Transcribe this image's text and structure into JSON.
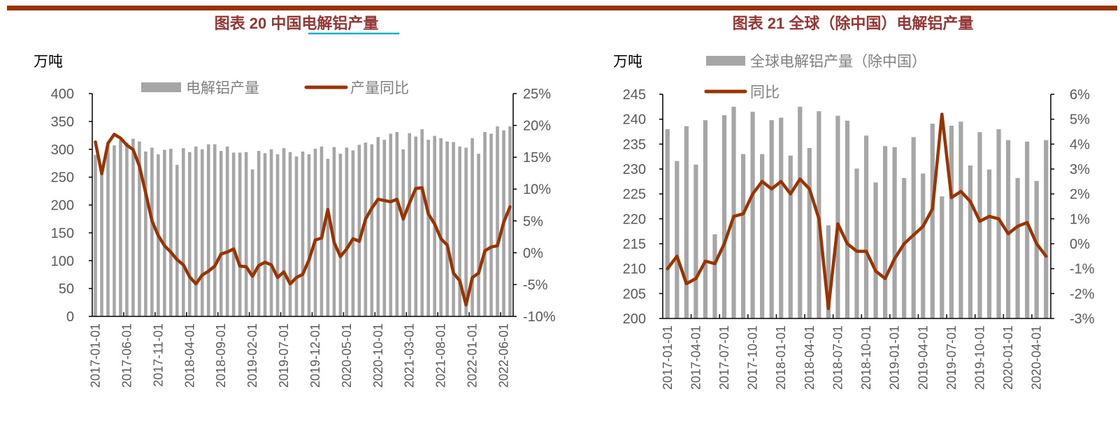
{
  "colors": {
    "bar": "#A6A6A6",
    "line": "#993300",
    "title": "#943634",
    "header_rule": "#993300",
    "link_underline": "#17B0C8",
    "axis_text": "#595959"
  },
  "chart_data": [
    {
      "type": "bar+line",
      "title": "图表 20 中国电解铝产量",
      "title_plain_part": "图表 20 中国",
      "title_link_part": "电解铝产量",
      "y_unit": "万吨",
      "ylim": [
        0,
        400
      ],
      "yticks": [
        "400",
        "350",
        "300",
        "250",
        "200",
        "150",
        "100",
        "50",
        "0"
      ],
      "y2lim": [
        -10,
        25
      ],
      "y2ticks": [
        "25%",
        "20%",
        "15%",
        "10%",
        "5%",
        "0%",
        "-5%",
        "-10%"
      ],
      "x_start": "2017-01",
      "x_tick_every": 5,
      "xtick_labels": [
        "2017-01-01",
        "2017-06-01",
        "2017-11-01",
        "2018-04-01",
        "2018-09-01",
        "2019-02-01",
        "2019-07-01",
        "2019-12-01",
        "2020-05-01",
        "2020-10-01",
        "2021-03-01",
        "2021-08-01",
        "2022-01-01",
        "2022-06-01"
      ],
      "legend": {
        "bar": "电解铝产量",
        "line": "产量同比",
        "placement": "top"
      },
      "series": [
        {
          "name": "电解铝产量",
          "axis": "left",
          "kind": "bar",
          "values": [
            290,
            270,
            310,
            307,
            317,
            312,
            319,
            314,
            296,
            303,
            291,
            299,
            301,
            272,
            302,
            295,
            305,
            300,
            309,
            309,
            297,
            305,
            294,
            294,
            295,
            264,
            297,
            293,
            300,
            291,
            302,
            295,
            287,
            296,
            291,
            301,
            305,
            283,
            304,
            292,
            303,
            298,
            308,
            312,
            309,
            322,
            317,
            328,
            331,
            300,
            329,
            323,
            336,
            317,
            324,
            320,
            314,
            313,
            305,
            303,
            320,
            292,
            331,
            328,
            341,
            334,
            341
          ]
        },
        {
          "name": "产量同比",
          "axis": "right",
          "kind": "line",
          "unit": "%",
          "values": [
            17.4,
            12.4,
            17.2,
            18.6,
            18.0,
            16.9,
            16.2,
            13.6,
            9.4,
            5.0,
            2.7,
            1.1,
            0.1,
            -1.1,
            -1.9,
            -3.8,
            -4.9,
            -3.5,
            -2.9,
            -2.1,
            -0.2,
            0.1,
            0.6,
            -2.1,
            -2.2,
            -3.7,
            -2.0,
            -1.5,
            -1.9,
            -3.9,
            -3.0,
            -4.9,
            -3.9,
            -3.4,
            -1.1,
            2.0,
            2.3,
            6.8,
            1.6,
            -0.6,
            0.6,
            2.2,
            1.8,
            5.3,
            7.0,
            8.4,
            8.2,
            8.0,
            8.4,
            5.3,
            7.8,
            10.1,
            10.2,
            6.1,
            4.5,
            2.2,
            1.2,
            -3.2,
            -4.4,
            -8.2,
            -3.9,
            -3.2,
            0.3,
            0.9,
            1.1,
            4.8,
            7.2
          ]
        }
      ]
    },
    {
      "type": "bar+line",
      "title": "图表 21 全球（除中国）电解铝产量",
      "y_unit": "万吨",
      "ylim": [
        200,
        245
      ],
      "yticks": [
        "245",
        "240",
        "235",
        "230",
        "225",
        "220",
        "215",
        "210",
        "205",
        "200"
      ],
      "y2lim": [
        -3,
        6
      ],
      "y2ticks": [
        "6%",
        "5%",
        "4%",
        "3%",
        "2%",
        "1%",
        "0%",
        "-1%",
        "-2%",
        "-3%"
      ],
      "x_start": "2017-01",
      "x_tick_every": 3,
      "xtick_labels": [
        "2017-01-01",
        "2017-04-01",
        "2017-07-01",
        "2017-10-01",
        "2018-01-01",
        "2018-04-01",
        "2018-07-01",
        "2018-10-01",
        "2019-01-01",
        "2019-04-01",
        "2019-07-01",
        "2019-10-01",
        "2020-01-01",
        "2020-04-01"
      ],
      "legend": {
        "bar": "全球电解铝产量（除中国）",
        "line": "同比",
        "placement": "top"
      },
      "series": [
        {
          "name": "全球电解铝产量（除中国）",
          "axis": "left",
          "kind": "bar",
          "values": [
            238.0,
            231.6,
            238.6,
            230.9,
            239.8,
            216.9,
            240.8,
            242.5,
            233.0,
            241.5,
            233.0,
            239.8,
            240.3,
            232.7,
            242.5,
            234.2,
            241.6,
            218.7,
            240.7,
            239.7,
            230.1,
            236.7,
            227.3,
            234.6,
            234.4,
            228.2,
            236.4,
            229.1,
            239.1,
            224.5,
            238.7,
            239.5,
            230.7,
            237.4,
            229.9,
            238.0,
            235.8,
            228.2,
            235.5,
            227.6,
            235.8
          ]
        },
        {
          "name": "同比",
          "axis": "right",
          "kind": "line",
          "unit": "%",
          "values": [
            -1.0,
            -0.5,
            -1.6,
            -1.4,
            -0.7,
            -0.8,
            0.0,
            1.1,
            1.2,
            2.0,
            2.5,
            2.2,
            2.5,
            2.0,
            2.6,
            2.2,
            1.0,
            -2.6,
            0.8,
            0.0,
            -0.3,
            -0.3,
            -1.1,
            -1.4,
            -0.6,
            0.0,
            0.35,
            0.7,
            1.4,
            5.2,
            1.85,
            2.1,
            1.7,
            0.9,
            1.1,
            1.0,
            0.4,
            0.7,
            0.85,
            0.0,
            -0.5
          ]
        }
      ]
    }
  ]
}
